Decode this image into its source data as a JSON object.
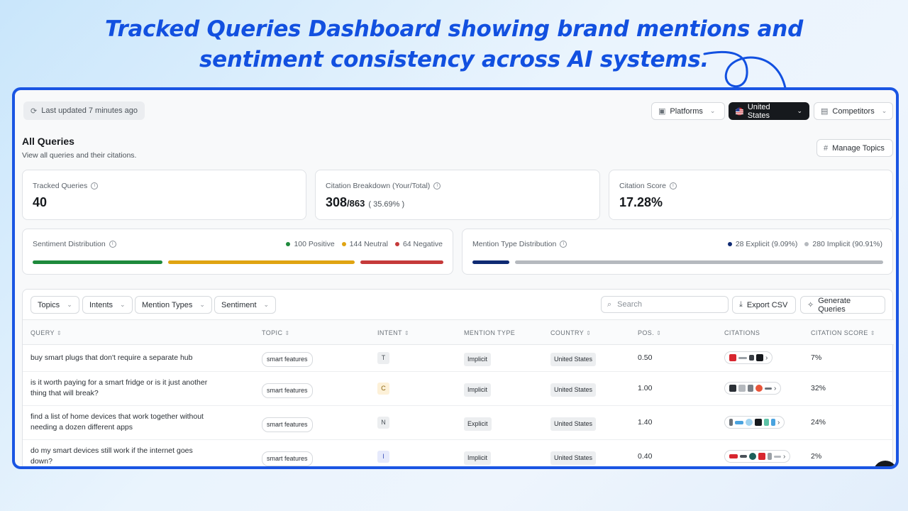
{
  "headline": {
    "line1": "Tracked Queries Dashboard showing brand mentions and",
    "line2": "sentiment consistency across AI systems."
  },
  "toolbar": {
    "last_updated": "Last updated 7 minutes ago",
    "platforms": "Platforms",
    "country": "United States",
    "competitors": "Competitors",
    "manage_topics": "Manage Topics"
  },
  "page": {
    "title": "All Queries",
    "subtitle": "View all queries and their citations."
  },
  "stats": {
    "tracked_label": "Tracked Queries",
    "tracked_value": "40",
    "citation_breakdown_label": "Citation Breakdown (Your/Total)",
    "citation_yours": "308",
    "citation_total": "/863",
    "citation_pct": "( 35.69% )",
    "citation_score_label": "Citation Score",
    "citation_score_value": "17.28%"
  },
  "sentiment": {
    "label": "Sentiment Distribution",
    "positive": "100 Positive",
    "neutral": "144 Neutral",
    "negative": "64 Negative",
    "positive_count": 100,
    "neutral_count": 144,
    "negative_count": 64,
    "colors": {
      "positive": "#1e8a3c",
      "neutral": "#e0a412",
      "negative": "#c53a3a"
    }
  },
  "mention_type": {
    "label": "Mention Type Distribution",
    "explicit": "28 Explicit (9.09%)",
    "implicit": "280 Implicit (90.91%)",
    "explicit_fraction": 0.0909,
    "colors": {
      "explicit": "#0f2a73",
      "implicit": "#b5b9be"
    }
  },
  "filters": {
    "topics": "Topics",
    "intents": "Intents",
    "mention_types": "Mention Types",
    "sentiment": "Sentiment",
    "search_placeholder": "Search",
    "export": "Export CSV",
    "generate": "Generate Queries"
  },
  "table": {
    "headers": {
      "query": "QUERY",
      "topic": "TOPIC",
      "intent": "INTENT",
      "mention_type": "MENTION TYPE",
      "country": "COUNTRY",
      "pos": "POS.",
      "citations": "CITATIONS",
      "citation_score": "CITATION SCORE"
    },
    "rows": [
      {
        "query_l1": "buy smart plugs that don't require a separate hub",
        "query_l2": "",
        "topic": "smart features",
        "intent": "T",
        "mention_type": "Implicit",
        "country": "United States",
        "pos": "0.50",
        "score": "7%"
      },
      {
        "query_l1": "is it worth paying for a smart fridge or is it just another",
        "query_l2": "thing that will break?",
        "topic": "smart features",
        "intent": "C",
        "mention_type": "Implicit",
        "country": "United States",
        "pos": "1.00",
        "score": "32%"
      },
      {
        "query_l1": "find a list of home devices that work together without",
        "query_l2": "needing a dozen different apps",
        "topic": "smart features",
        "intent": "N",
        "mention_type": "Explicit",
        "country": "United States",
        "pos": "1.40",
        "score": "24%"
      },
      {
        "query_l1": "do my smart devices still work if the internet goes",
        "query_l2": "down?",
        "topic": "smart features",
        "intent": "I",
        "mention_type": "Implicit",
        "country": "United States",
        "pos": "0.40",
        "score": "2%"
      }
    ]
  }
}
